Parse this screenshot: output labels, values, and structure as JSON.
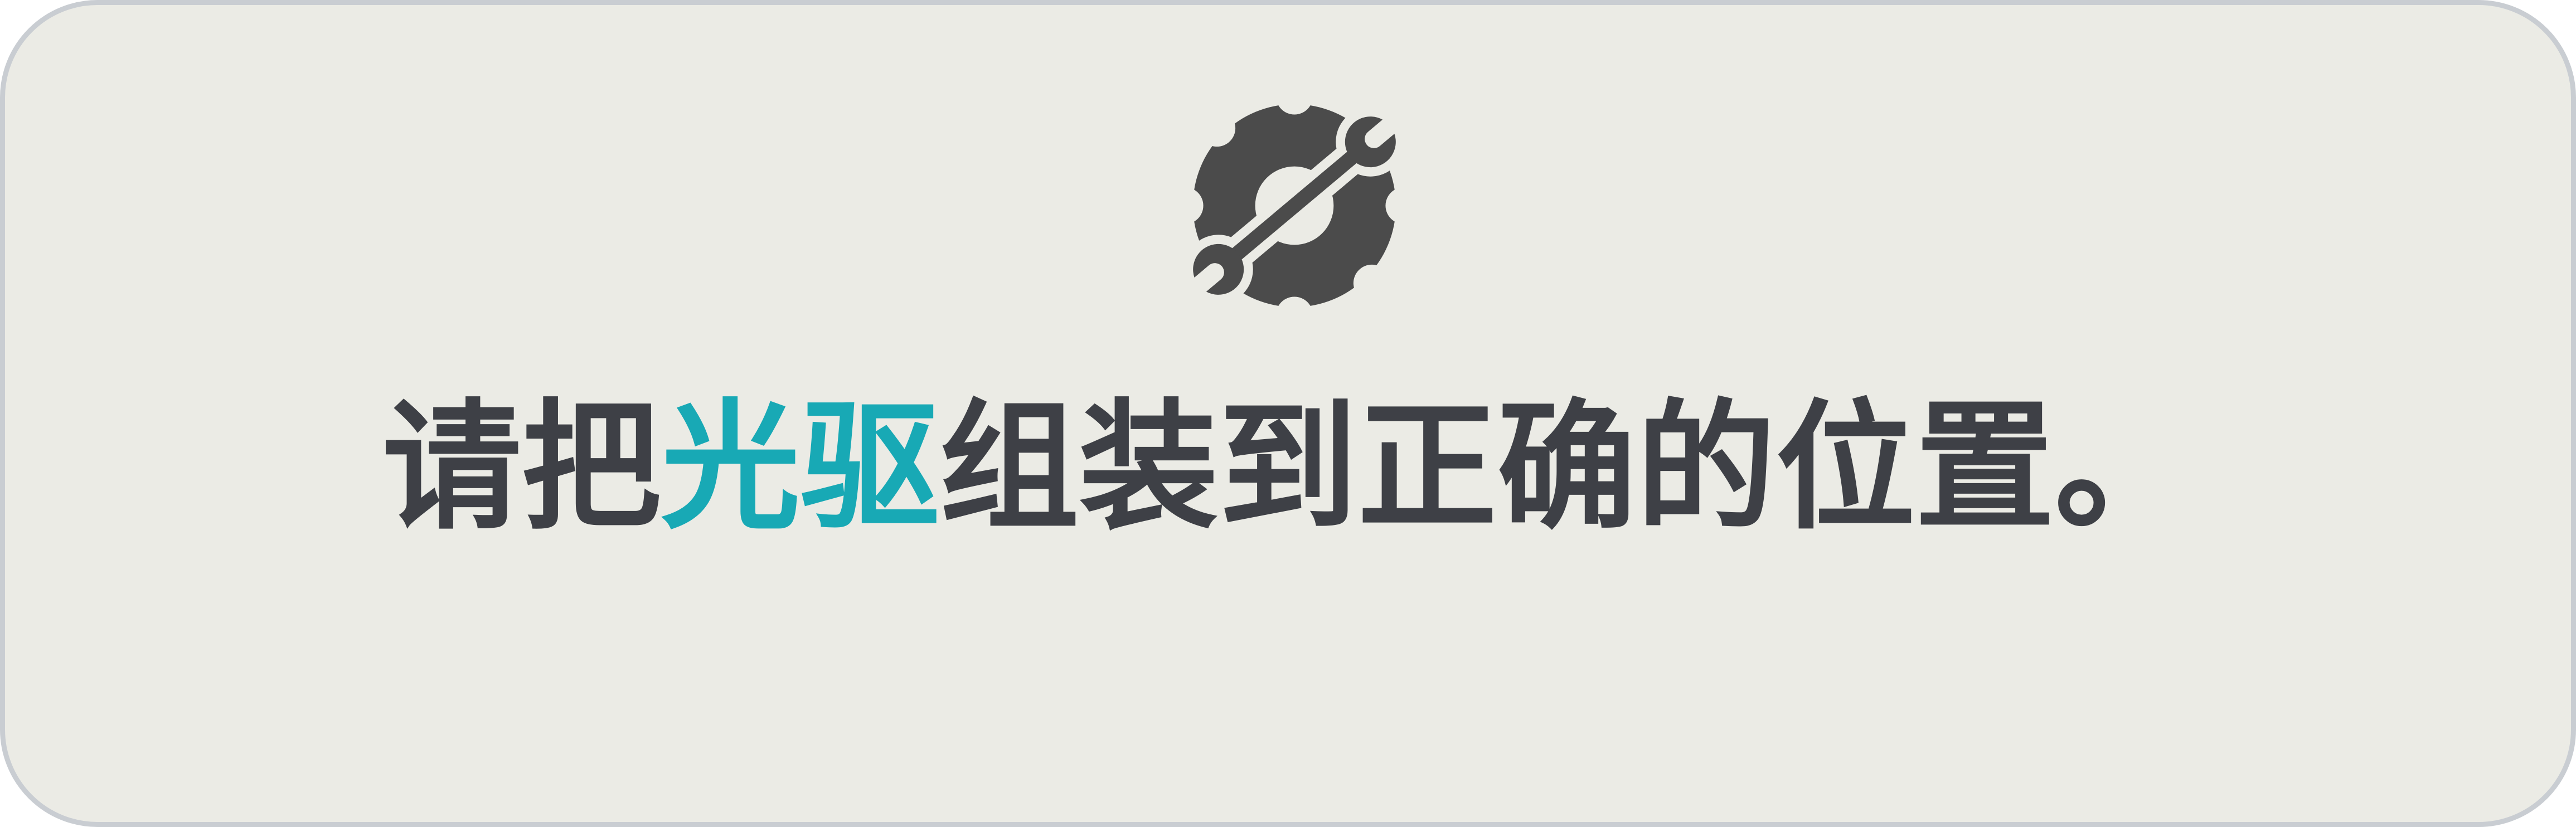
{
  "instruction": {
    "before": "请把",
    "highlight": "光驱",
    "after": "组装到正确的位置。"
  },
  "icon": {
    "name": "wrench-gear-icon"
  },
  "colors": {
    "card_background": "#ebebe5",
    "card_border": "#c9cdd2",
    "text": "#3e4046",
    "highlight": "#18a9b5",
    "icon": "#4b4b4b"
  }
}
